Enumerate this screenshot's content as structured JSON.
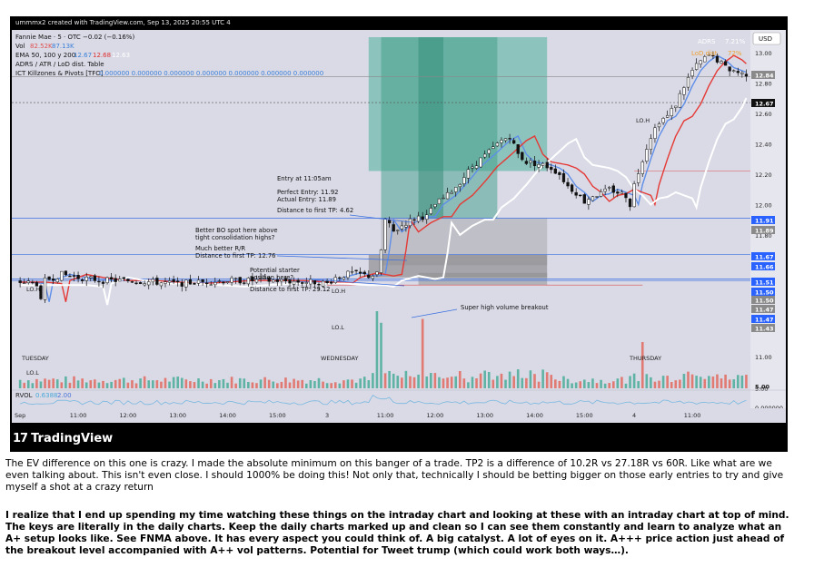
{
  "header": {
    "snapshot_info": "ummmx2 created with TradingView.com, Sep 13, 2025 20:55 UTC 4"
  },
  "legend": {
    "symbol_line": "Fannie Mae · 5 · OTC  −0.02 (−0.16%)",
    "vol_label": "Vol",
    "vol_val1": "82.52K",
    "vol_val2": "87.13K",
    "ema_label": "EMA 50, 100 y 200",
    "ema_val1": "12.67",
    "ema_val2": "12.68",
    "ema_val3": "12.63",
    "adrs_line": "ADRS / ATR / LoD dist. Table",
    "ict_label": "ICT Killzones & Pivots [TFO]",
    "ict_vals": "0.000000  0.000000  0.000000  0.000000  0.000000  0.000000  0.000000"
  },
  "currency": "USD",
  "adrs": {
    "label": "ADRS",
    "value": "7.21%",
    "lod_label": "LoD dist.",
    "lod_value": "72%"
  },
  "annotations": {
    "entry": "Entry at 11:05am",
    "perfect_entry": "Perfect Entry: 11.92",
    "actual_entry": "Actual Entry: 11.89",
    "dist_tp1": "Distance to first TP: 4.62",
    "better_bo_1": "Better BO spot here above",
    "better_bo_2": "tight consolidation highs?",
    "better_rr_1": "Much better R/R",
    "better_rr_2": "Distance to first TP: 12.76",
    "starter_1": "Potential starter",
    "starter_2": "position here?",
    "dist_tp2": "Distance to first TP: 29.12",
    "volume_breakout": "Super high volume breakout"
  },
  "pivot_labels": {
    "lo_h_left": "LO.H",
    "lo_l_left": "LO.L",
    "lo_h_mid": "LO.H",
    "lo_l_mid": "LO.L",
    "lo_h_right": "LO.H"
  },
  "day_labels": {
    "tuesday": "TUESDAY",
    "wednesday": "WEDNESDAY",
    "thursday": "THURSDAY"
  },
  "rvol": {
    "label": "RVOL",
    "val1": "0.6388",
    "val2": "2.00",
    "axis_val": "0.000000"
  },
  "price_tags": [
    {
      "text": "12.84",
      "kind": "gray"
    },
    {
      "text": "12.67",
      "kind": "black"
    },
    {
      "text": "11.91",
      "kind": "blue"
    },
    {
      "text": "11.89",
      "kind": "gray"
    },
    {
      "text": "11.67",
      "kind": "blue"
    },
    {
      "text": "11.66",
      "kind": "blue"
    },
    {
      "text": "11.51",
      "kind": "blue"
    },
    {
      "text": "11.50",
      "kind": "blue"
    },
    {
      "text": "11.50",
      "kind": "gray"
    },
    {
      "text": "11.47",
      "kind": "gray"
    },
    {
      "text": "11.47",
      "kind": "blue"
    },
    {
      "text": "11.43",
      "kind": "gray"
    },
    {
      "text": "5.00",
      "kind": "plain"
    }
  ],
  "footer": {
    "brand": "TradingView"
  },
  "caption": {
    "paragraph1": "The EV difference on this one is crazy. I made the absolute minimum on this banger of a trade. TP2 is a difference of 10.2R vs 27.18R vs 60R. Like what are we even talking about. This isn't even close. I should 1000% be doing this! Not only that, technically I should be betting bigger on those early entries to try and give myself a shot at a crazy return",
    "paragraph2": "I realize that I end up spending my time watching these things on the intraday chart and looking at these with an intraday chart at top of mind. The keys are literally in the daily charts. Keep the daily charts marked up and clean so I can see them constantly and learn to analyze what an A+ setup looks like. See FNMA above. It has every aspect you could think of. A big catalyst. A lot of eyes on it. A+++ price action just ahead of the breakout level accompanied with A++ vol patterns. Potential for Tweet trump (which could work both ways…)."
  },
  "chart_data": {
    "type": "candlestick",
    "title": "Fannie Mae · 5 · OTC",
    "timeframe": "5 minute",
    "ylim": [
      11.0,
      13.1
    ],
    "y_ticks": [
      11.0,
      11.2,
      11.4,
      11.6,
      11.8,
      12.0,
      12.2,
      12.4,
      12.6,
      12.8,
      13.0
    ],
    "y_tick_labels": [
      "11.00",
      "11.20",
      "11.40",
      "11.60",
      "11.80",
      "12.00",
      "12.20",
      "12.40",
      "12.60",
      "12.80",
      "13.00"
    ],
    "x_ticks": [
      {
        "label": "Sep",
        "t": 0
      },
      {
        "label": "11:00",
        "t": 14
      },
      {
        "label": "12:00",
        "t": 26
      },
      {
        "label": "13:00",
        "t": 38
      },
      {
        "label": "14:00",
        "t": 50
      },
      {
        "label": "15:00",
        "t": 62
      },
      {
        "label": "3",
        "t": 74
      },
      {
        "label": "11:00",
        "t": 88
      },
      {
        "label": "12:00",
        "t": 100
      },
      {
        "label": "13:00",
        "t": 112
      },
      {
        "label": "14:00",
        "t": 124
      },
      {
        "label": "15:00",
        "t": 136
      },
      {
        "label": "4",
        "t": 148
      },
      {
        "label": "11:00",
        "t": 162
      }
    ],
    "t_range": [
      -2,
      176
    ],
    "close_path": [
      [
        0,
        11.49
      ],
      [
        4,
        11.48
      ],
      [
        5,
        11.36
      ],
      [
        6,
        11.5
      ],
      [
        8,
        11.52
      ],
      [
        10,
        11.54
      ],
      [
        14,
        11.52
      ],
      [
        20,
        11.5
      ],
      [
        26,
        11.5
      ],
      [
        32,
        11.49
      ],
      [
        38,
        11.48
      ],
      [
        44,
        11.49
      ],
      [
        50,
        11.5
      ],
      [
        56,
        11.5
      ],
      [
        62,
        11.5
      ],
      [
        68,
        11.49
      ],
      [
        72,
        11.49
      ],
      [
        74,
        11.48
      ],
      [
        76,
        11.52
      ],
      [
        80,
        11.55
      ],
      [
        84,
        11.53
      ],
      [
        86,
        11.54
      ],
      [
        87,
        11.7
      ],
      [
        88,
        11.9
      ],
      [
        90,
        11.82
      ],
      [
        93,
        11.88
      ],
      [
        96,
        11.92
      ],
      [
        98,
        11.92
      ],
      [
        100,
        12.0
      ],
      [
        103,
        12.06
      ],
      [
        106,
        12.15
      ],
      [
        109,
        12.25
      ],
      [
        112,
        12.32
      ],
      [
        114,
        12.37
      ],
      [
        116,
        12.42
      ],
      [
        118,
        12.45
      ],
      [
        120,
        12.33
      ],
      [
        122,
        12.28
      ],
      [
        124,
        12.27
      ],
      [
        126,
        12.26
      ],
      [
        128,
        12.24
      ],
      [
        130,
        12.2
      ],
      [
        132,
        12.12
      ],
      [
        134,
        12.08
      ],
      [
        136,
        12.02
      ],
      [
        138,
        12.06
      ],
      [
        140,
        12.07
      ],
      [
        142,
        12.1
      ],
      [
        144,
        12.08
      ],
      [
        146,
        12.06
      ],
      [
        147,
        12.0
      ],
      [
        148,
        12.13
      ],
      [
        150,
        12.3
      ],
      [
        152,
        12.45
      ],
      [
        154,
        12.55
      ],
      [
        156,
        12.58
      ],
      [
        158,
        12.66
      ],
      [
        160,
        12.78
      ],
      [
        162,
        12.88
      ],
      [
        164,
        12.94
      ],
      [
        166,
        12.98
      ],
      [
        168,
        12.95
      ],
      [
        170,
        12.9
      ],
      [
        172,
        12.88
      ],
      [
        174,
        12.86
      ]
    ],
    "series": [
      {
        "name": "EMA 50",
        "color": "#5f8ee8",
        "lag": 2
      },
      {
        "name": "EMA 100",
        "color": "#e53935",
        "lag": 6
      },
      {
        "name": "EMA 200",
        "color": "#ffffff",
        "lag": 16
      }
    ],
    "levels": [
      {
        "price": 12.84,
        "color": "#8a8a8a"
      },
      {
        "price": 12.67,
        "color": "#555555",
        "dashed": true
      },
      {
        "price": 11.91,
        "color": "#3b6fe0"
      },
      {
        "price": 11.67,
        "color": "#3b6fe0"
      },
      {
        "price": 11.51,
        "color": "#3b6fe0"
      },
      {
        "price": 11.5,
        "color": "#3b6fe0"
      }
    ],
    "trade_zones": [
      {
        "t0": 84,
        "t1": 127,
        "p0": 12.22,
        "p1": 13.1,
        "color": "#4fb09a",
        "opacity": 0.55
      },
      {
        "t0": 87,
        "t1": 115,
        "p0": 11.91,
        "p1": 13.1,
        "color": "#3f9d88",
        "opacity": 0.5
      },
      {
        "t0": 96,
        "t1": 102,
        "p0": 11.91,
        "p1": 13.1,
        "color": "#2f8a76",
        "opacity": 0.5
      },
      {
        "t0": 84,
        "t1": 127,
        "p0": 11.52,
        "p1": 11.67,
        "color": "#7a7a7a",
        "opacity": 0.55
      },
      {
        "t0": 87,
        "t1": 127,
        "p0": 11.6,
        "p1": 11.91,
        "color": "#8c8c8c",
        "opacity": 0.35
      },
      {
        "t0": 96,
        "t1": 127,
        "p0": 11.47,
        "p1": 11.55,
        "color": "#8c8c8c",
        "opacity": 0.5
      }
    ],
    "volume_spikes": [
      {
        "t": 86,
        "v": 1.0
      },
      {
        "t": 87,
        "v": 0.85
      },
      {
        "t": 97,
        "v": 0.9
      },
      {
        "t": 150,
        "v": 0.6
      }
    ],
    "volume_axis": "5.00"
  }
}
